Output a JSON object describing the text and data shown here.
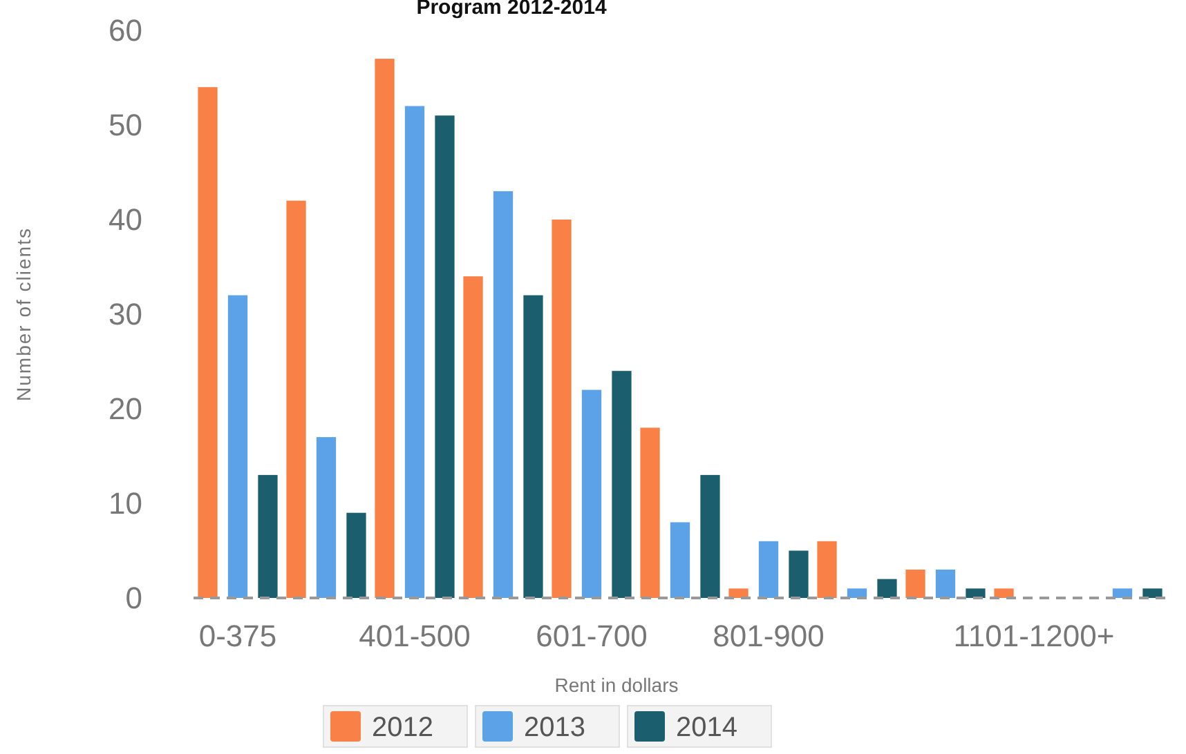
{
  "chart_data": {
    "type": "bar",
    "title": "Program 2012-2014",
    "xlabel": "Rent in dollars",
    "ylabel": "Number of clients",
    "categories": [
      "0-375",
      null,
      "401-500",
      null,
      "601-700",
      null,
      "801-900",
      null,
      null,
      "1101-1200+",
      null
    ],
    "series": [
      {
        "name": "2012",
        "color": "#f98047",
        "values": [
          54,
          42,
          57,
          34,
          40,
          18,
          1,
          6,
          3,
          1,
          0
        ]
      },
      {
        "name": "2013",
        "color": "#5ba3e6",
        "values": [
          32,
          17,
          52,
          43,
          22,
          8,
          6,
          1,
          3,
          0,
          1
        ]
      },
      {
        "name": "2014",
        "color": "#1b5e6e",
        "values": [
          13,
          9,
          51,
          32,
          24,
          13,
          5,
          2,
          1,
          0,
          1
        ]
      }
    ],
    "ylim": [
      0,
      60
    ],
    "yticks": [
      0,
      10,
      20,
      30,
      40,
      50,
      60
    ],
    "grid": false,
    "legend": "bottom"
  }
}
